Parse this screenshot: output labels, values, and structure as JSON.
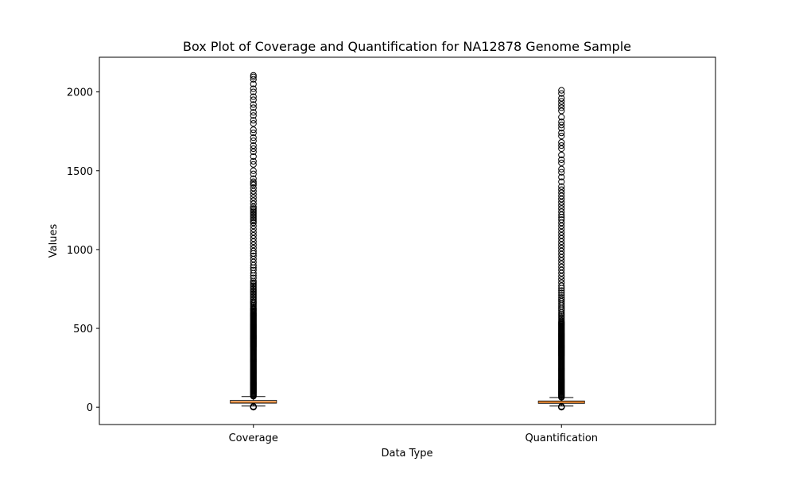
{
  "chart_data": {
    "type": "box",
    "title": "Box Plot of Coverage and Quantification for NA12878 Genome Sample",
    "xlabel": "Data Type",
    "ylabel": "Values",
    "ylim": [
      -110,
      2220
    ],
    "yticks": [
      0,
      500,
      1000,
      1500,
      2000
    ],
    "grid": false,
    "colors": {
      "box_edge": "#000000",
      "median": "#ff7f0e",
      "flier": "#000000",
      "background": "#ffffff"
    },
    "categories": [
      "Coverage",
      "Quantification"
    ],
    "series": [
      {
        "category": "Coverage",
        "whisker_low": 7,
        "q1": 26,
        "median": 33,
        "q3": 43,
        "whisker_high": 68,
        "fliers_low": [
          0,
          1,
          2,
          3,
          4,
          5
        ],
        "fliers_high": [
          70,
          75,
          80,
          85,
          90,
          95,
          100,
          105,
          110,
          115,
          120,
          125,
          130,
          135,
          140,
          145,
          150,
          155,
          160,
          165,
          170,
          175,
          180,
          185,
          190,
          195,
          200,
          205,
          210,
          215,
          220,
          225,
          230,
          235,
          240,
          245,
          250,
          255,
          260,
          265,
          270,
          275,
          280,
          285,
          290,
          295,
          300,
          305,
          310,
          315,
          320,
          325,
          330,
          335,
          340,
          345,
          350,
          355,
          360,
          365,
          370,
          375,
          380,
          385,
          390,
          395,
          400,
          405,
          410,
          415,
          420,
          425,
          430,
          435,
          440,
          445,
          450,
          455,
          460,
          465,
          470,
          475,
          480,
          485,
          490,
          495,
          500,
          505,
          510,
          515,
          520,
          525,
          530,
          535,
          540,
          545,
          550,
          555,
          560,
          565,
          570,
          575,
          580,
          585,
          590,
          595,
          600,
          606,
          612,
          618,
          624,
          630,
          638,
          646,
          654,
          662,
          670,
          680,
          690,
          700,
          710,
          720,
          730,
          740,
          750,
          760,
          770,
          780,
          790,
          800,
          820,
          835,
          850,
          870,
          885,
          900,
          920,
          940,
          960,
          975,
          990,
          1010,
          1030,
          1050,
          1070,
          1090,
          1110,
          1130,
          1150,
          1170,
          1180,
          1190,
          1200,
          1210,
          1220,
          1230,
          1240,
          1250,
          1260,
          1270,
          1290,
          1310,
          1330,
          1350,
          1370,
          1390,
          1410,
          1420,
          1430,
          1450,
          1480,
          1500,
          1540,
          1560,
          1590,
          1620,
          1640,
          1660,
          1690,
          1710,
          1740,
          1760,
          1800,
          1820,
          1850,
          1870,
          1900,
          1920,
          1950,
          1970,
          2000,
          2020,
          2050,
          2080,
          2095,
          2105
        ]
      },
      {
        "category": "Quantification",
        "whisker_low": 7,
        "q1": 25,
        "median": 32,
        "q3": 39,
        "whisker_high": 61,
        "fliers_low": [
          0,
          1,
          2,
          3,
          4,
          5
        ],
        "fliers_high": [
          63,
          67,
          72,
          77,
          82,
          87,
          92,
          97,
          102,
          107,
          112,
          117,
          122,
          127,
          132,
          137,
          142,
          147,
          152,
          157,
          162,
          167,
          172,
          177,
          182,
          187,
          192,
          197,
          202,
          207,
          212,
          217,
          222,
          227,
          232,
          237,
          242,
          247,
          252,
          257,
          262,
          267,
          272,
          277,
          282,
          287,
          292,
          297,
          302,
          307,
          312,
          317,
          322,
          327,
          332,
          337,
          342,
          347,
          352,
          357,
          362,
          367,
          372,
          377,
          382,
          387,
          392,
          397,
          402,
          407,
          412,
          417,
          422,
          427,
          432,
          437,
          442,
          447,
          452,
          457,
          462,
          467,
          472,
          477,
          482,
          487,
          492,
          497,
          502,
          507,
          512,
          517,
          522,
          527,
          532,
          537,
          542,
          550,
          560,
          570,
          580,
          590,
          600,
          612,
          624,
          636,
          648,
          660,
          672,
          684,
          696,
          710,
          725,
          740,
          755,
          770,
          790,
          810,
          830,
          850,
          870,
          890,
          910,
          930,
          950,
          970,
          990,
          1010,
          1030,
          1050,
          1070,
          1090,
          1110,
          1130,
          1150,
          1170,
          1190,
          1205,
          1220,
          1240,
          1260,
          1280,
          1300,
          1320,
          1340,
          1360,
          1380,
          1400,
          1430,
          1460,
          1490,
          1510,
          1550,
          1570,
          1600,
          1640,
          1660,
          1680,
          1720,
          1740,
          1770,
          1790,
          1810,
          1840,
          1880,
          1900,
          1920,
          1940,
          1960,
          1990,
          2010
        ]
      }
    ]
  }
}
